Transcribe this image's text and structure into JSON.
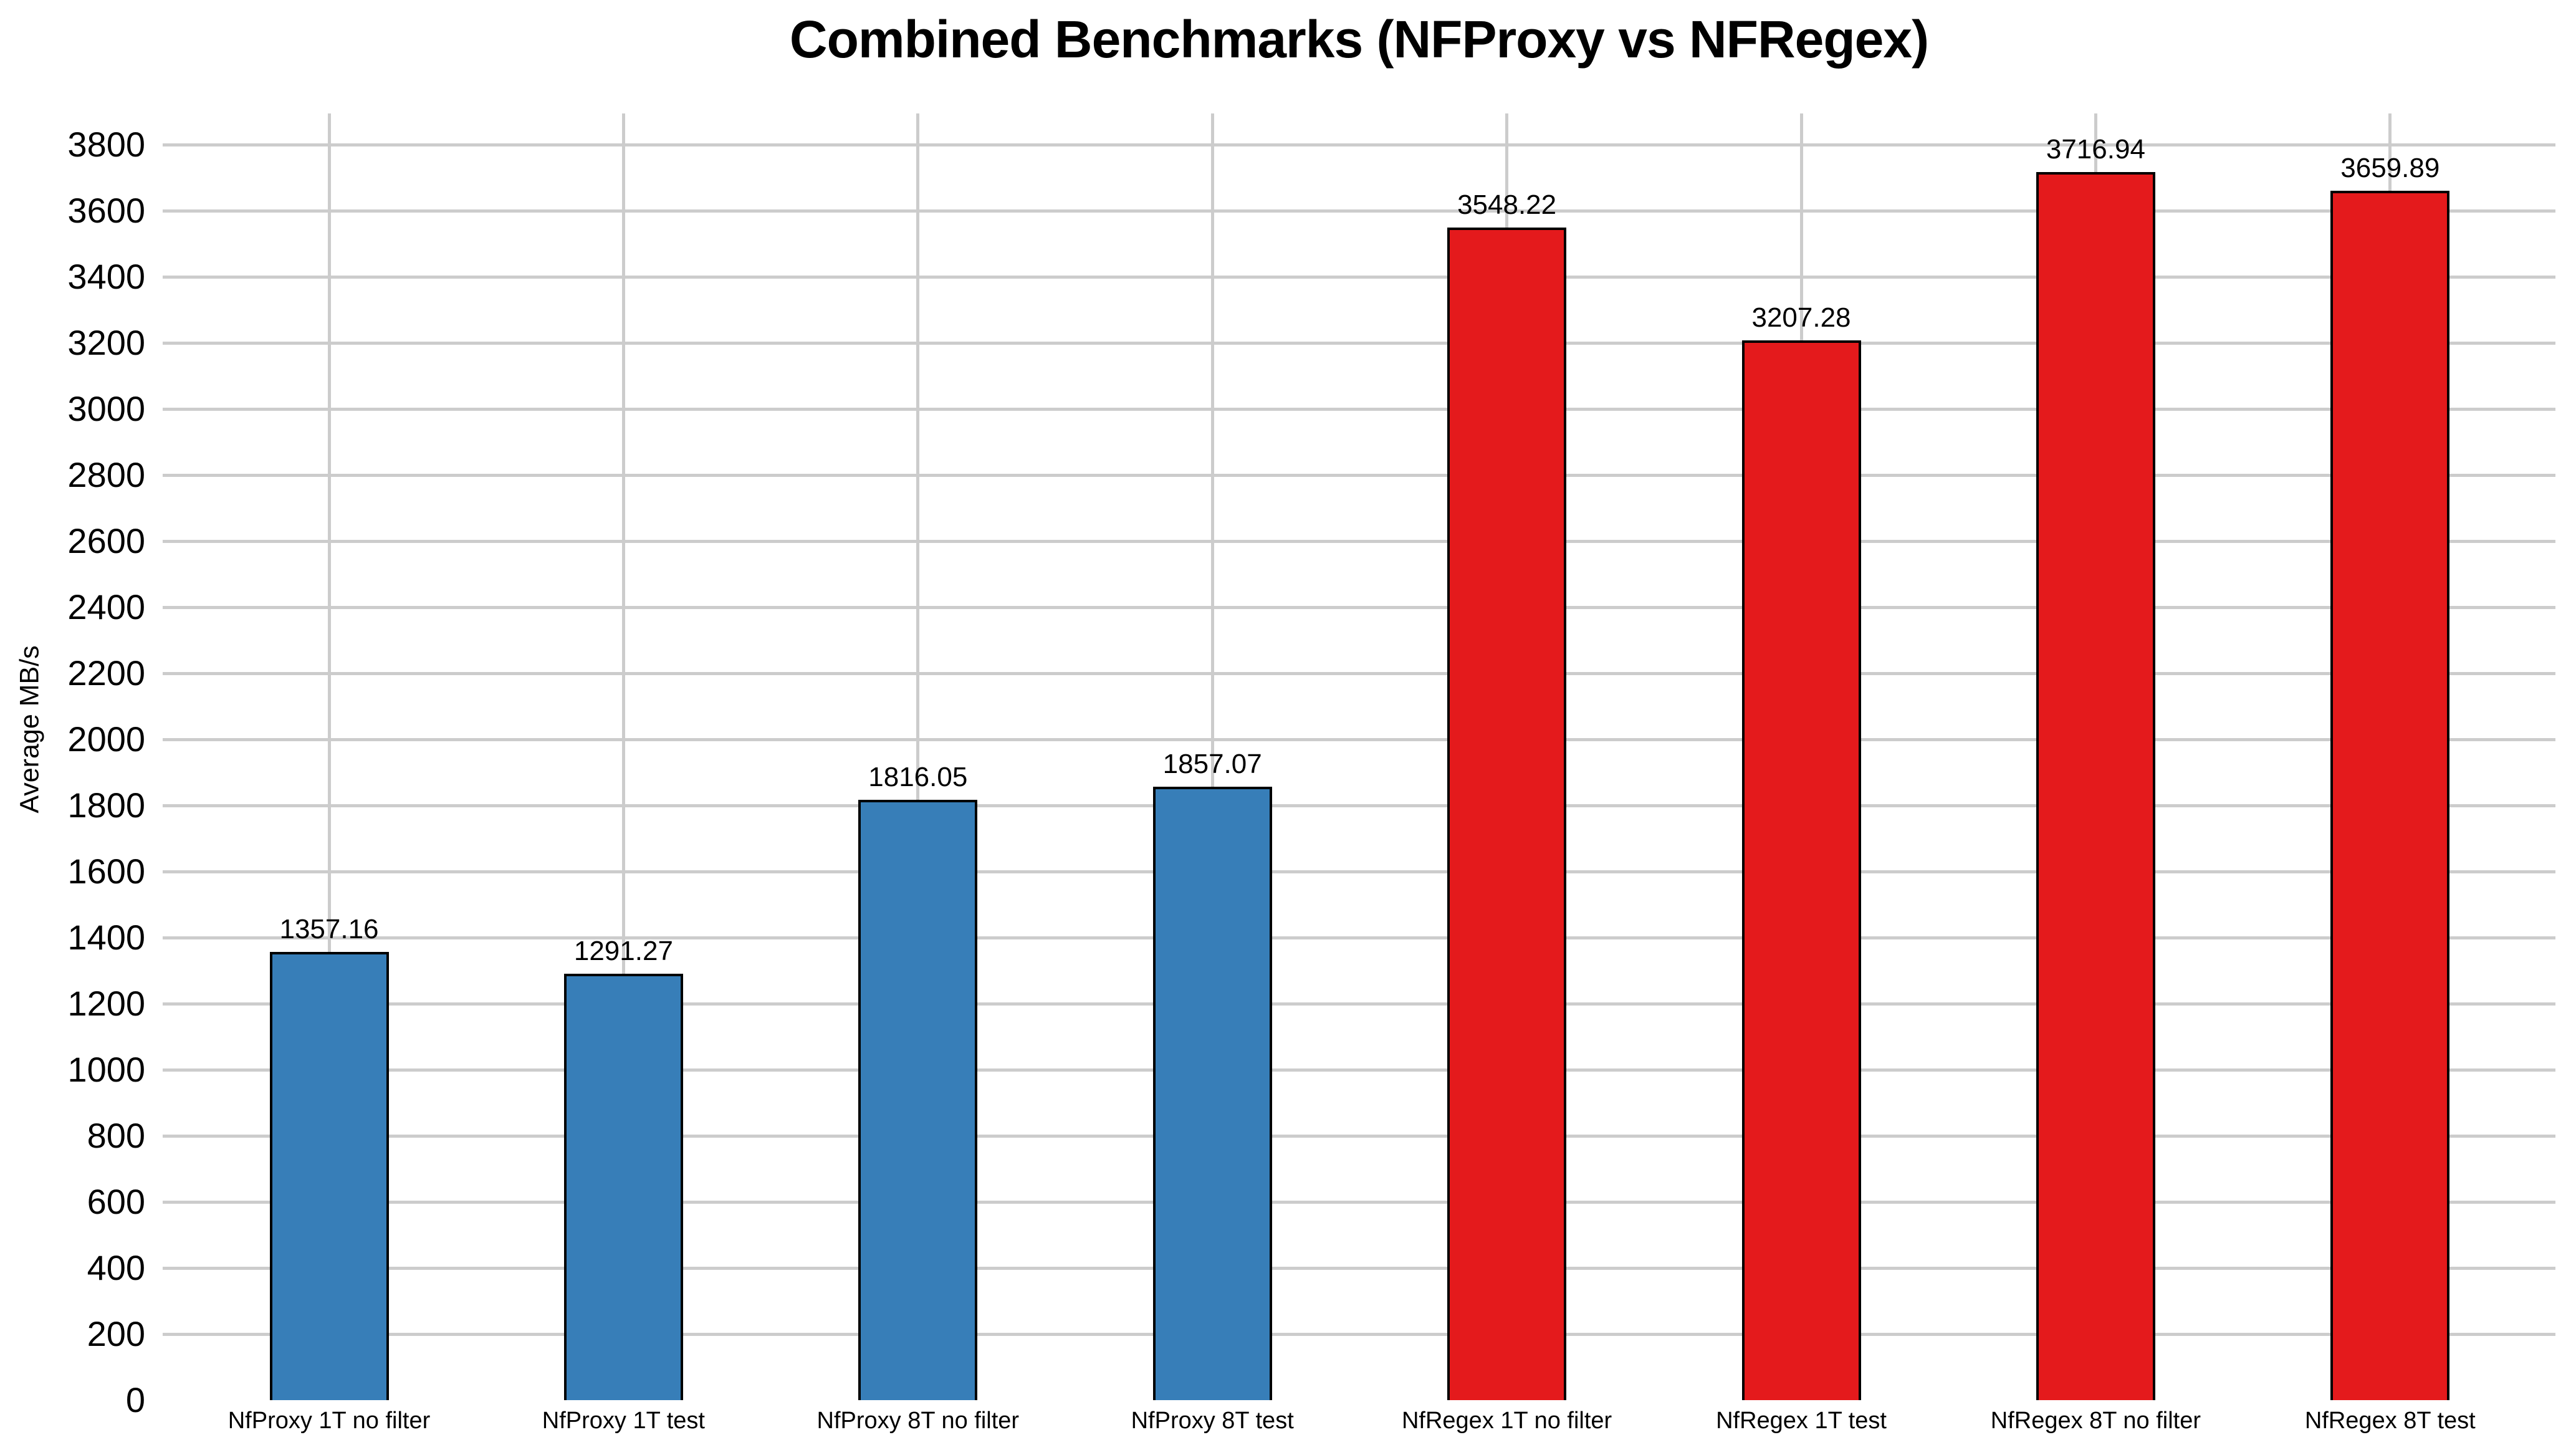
{
  "chart_data": {
    "type": "bar",
    "title": "Combined Benchmarks (NFProxy vs NFRegex)",
    "ylabel": "Average MB/s",
    "xlabel": "",
    "categories": [
      "NfProxy 1T no filter",
      "NfProxy 1T test",
      "NfProxy 8T no filter",
      "NfProxy 8T test",
      "NfRegex 1T no filter",
      "NfRegex 1T test",
      "NfRegex 8T no filter",
      "NfRegex 8T test"
    ],
    "values": [
      1357.16,
      1291.27,
      1816.05,
      1857.07,
      3548.22,
      3207.28,
      3716.94,
      3659.89
    ],
    "value_labels": [
      "1357.16",
      "1291.27",
      "1816.05",
      "1857.07",
      "3548.22",
      "3207.28",
      "3716.94",
      "3659.89"
    ],
    "bar_colors": [
      "#377eb8",
      "#377eb8",
      "#377eb8",
      "#377eb8",
      "#e41a1c",
      "#e41a1c",
      "#e41a1c",
      "#e41a1c"
    ],
    "series": [
      {
        "name": "NfProxy",
        "color": "#377eb8"
      },
      {
        "name": "NfRegex",
        "color": "#e41a1c"
      }
    ],
    "yaxis": {
      "min": 0,
      "max": 3800,
      "tick_step": 200
    },
    "grid": true,
    "legend": false,
    "colors": {
      "nfproxy_blue": "#377eb8",
      "nfregex_red": "#e41a1c",
      "gridline": "#cccccc",
      "bar_border": "#000000",
      "background": "#ffffff",
      "text": "#000000"
    }
  }
}
